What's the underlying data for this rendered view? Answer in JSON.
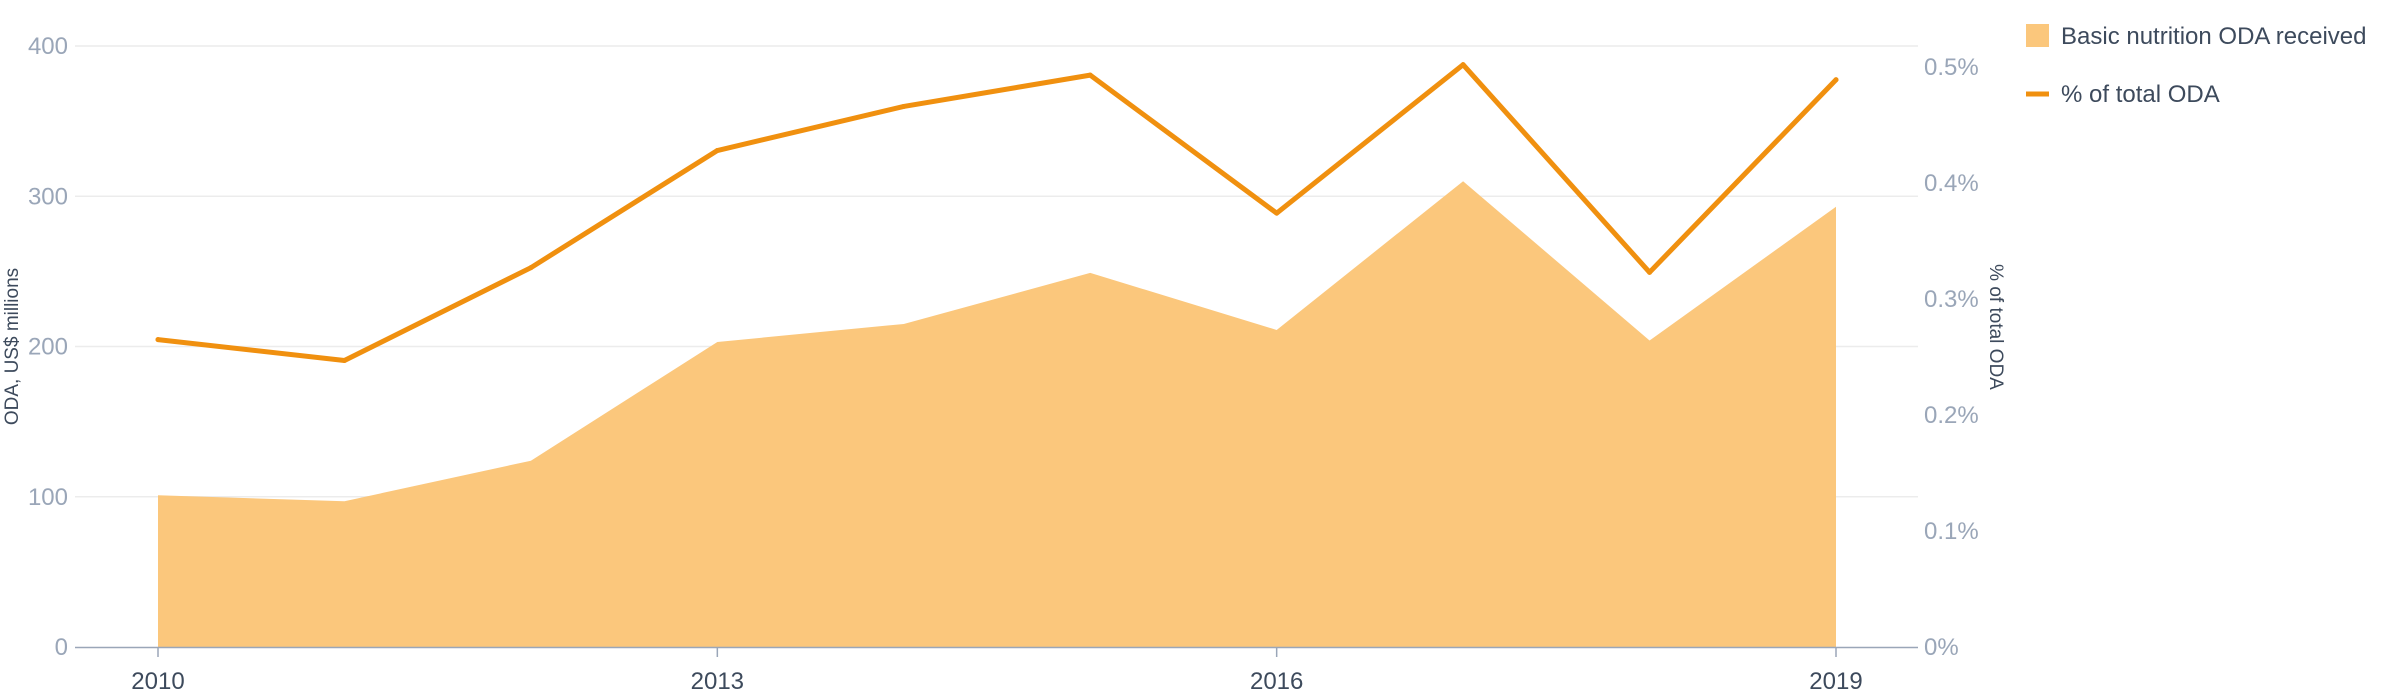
{
  "chart_data": {
    "type": "area",
    "x": [
      2010,
      2011,
      2012,
      2013,
      2014,
      2015,
      2016,
      2017,
      2018,
      2019
    ],
    "x_tick_labels": [
      "2010",
      "2013",
      "2016",
      "2019"
    ],
    "series": [
      {
        "name": "Basic nutrition ODA received",
        "type": "area",
        "axis": "left",
        "color": "#fbc77c",
        "values": [
          101,
          97,
          124,
          203,
          215,
          249,
          211,
          310,
          204,
          293
        ]
      },
      {
        "name": "% of total ODA",
        "type": "line",
        "axis": "right",
        "color": "#f0900f",
        "values": [
          0.265,
          0.247,
          0.327,
          0.428,
          0.466,
          0.493,
          0.374,
          0.502,
          0.323,
          0.489
        ]
      }
    ],
    "left_axis": {
      "label": "ODA, US$ millions",
      "ylim": [
        0,
        400
      ],
      "ticks": [
        0,
        100,
        200,
        300,
        400
      ],
      "tick_labels": [
        "0",
        "100",
        "200",
        "300",
        "400"
      ]
    },
    "right_axis": {
      "label": "% of total ODA",
      "ylim": [
        0,
        0.5
      ],
      "ticks": [
        0,
        0.1,
        0.2,
        0.3,
        0.4,
        0.5
      ],
      "tick_labels": [
        "0%",
        "0.1%",
        "0.2%",
        "0.3%",
        "0.4%",
        "0.5%"
      ]
    },
    "grid": true,
    "legend_position": "top-right"
  }
}
